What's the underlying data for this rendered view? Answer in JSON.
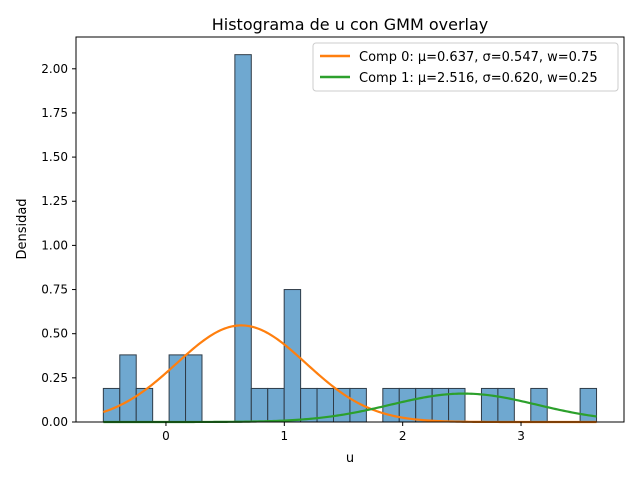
{
  "chart_data": {
    "type": "bar",
    "title": "Histograma de u con GMM overlay",
    "xlabel": "u",
    "ylabel": "Densidad",
    "xlim": [
      -0.76,
      3.87
    ],
    "ylim": [
      0.0,
      2.18
    ],
    "xticks": [
      0,
      1,
      2,
      3
    ],
    "xtick_labels": [
      "0",
      "1",
      "2",
      "3"
    ],
    "yticks": [
      0.0,
      0.25,
      0.5,
      0.75,
      1.0,
      1.25,
      1.5,
      1.75,
      2.0
    ],
    "ytick_labels": [
      "0.00",
      "0.25",
      "0.50",
      "0.75",
      "1.00",
      "1.25",
      "1.50",
      "1.75",
      "2.00"
    ],
    "grid": false,
    "legend_position": "top-right",
    "histogram": {
      "bin_start": -0.529,
      "bin_width": 0.1389,
      "counts_density": [
        0.19,
        0.38,
        0.19,
        0,
        0.38,
        0.38,
        0,
        0,
        2.08,
        0.19,
        0.19,
        0.75,
        0.19,
        0.19,
        0.19,
        0.19,
        0,
        0.19,
        0.19,
        0.19,
        0.19,
        0.19,
        0,
        0.19,
        0.19,
        0,
        0.19,
        0,
        0,
        0.19
      ],
      "color": "#6fa8d0",
      "edge_color": "#2f3c48"
    },
    "series": [
      {
        "name": "Comp 0: μ=0.637, σ=0.547, w=0.75",
        "mu": 0.637,
        "sigma": 0.547,
        "weight": 0.75,
        "color": "#ff7f0e"
      },
      {
        "name": "Comp 1: μ=2.516, σ=0.620, w=0.25",
        "mu": 2.516,
        "sigma": 0.62,
        "weight": 0.25,
        "color": "#2ca02c"
      }
    ]
  }
}
